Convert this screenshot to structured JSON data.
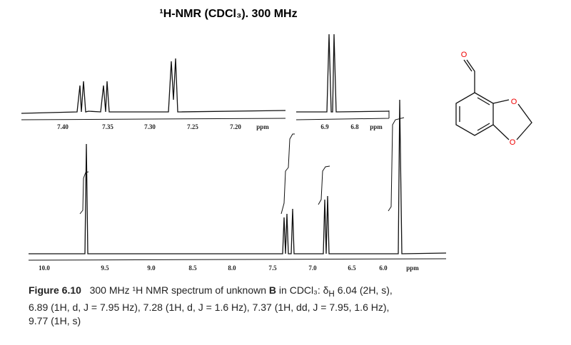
{
  "title": "¹H-NMR (CDCl₃). 300 MHz",
  "inset_left": {
    "ticks": [
      "7.40",
      "7.35",
      "7.30",
      "7.25",
      "7.20"
    ],
    "unit": "ppm"
  },
  "inset_right": {
    "ticks": [
      "6.9",
      "6.8"
    ],
    "unit": "ppm"
  },
  "main": {
    "ticks": [
      "10.0",
      "9.5",
      "9.0",
      "8.5",
      "8.0",
      "7.5",
      "7.0",
      "6.5",
      "6.0"
    ],
    "unit": "ppm"
  },
  "structure": {
    "atoms": [
      "O",
      "O",
      "O"
    ]
  },
  "caption": {
    "label": "Figure 6.10",
    "lines": [
      [
        "300 MHz ¹H NMR spectrum of unknown ",
        "B",
        " in CDCl₃: δ",
        "H",
        " 6.04 (2H, s),"
      ],
      [
        "6.89 (1H, d, J = 7.95 Hz), 7.28 (1H, d, J = 1.6 Hz), 7.37 (1H, dd, J = 7.95, 1.6 Hz),"
      ],
      [
        "9.77 (1H, s)"
      ]
    ]
  }
}
